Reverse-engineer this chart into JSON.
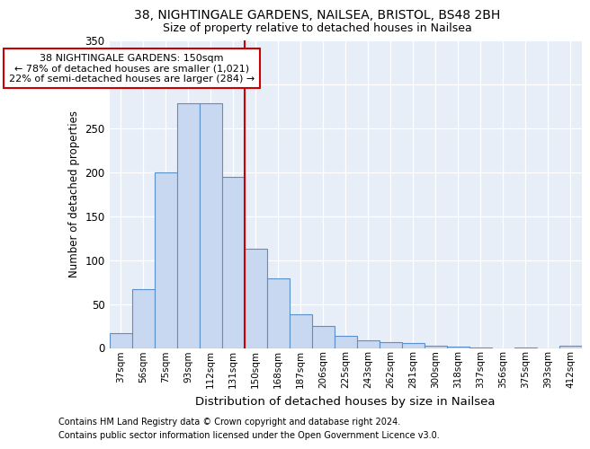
{
  "title1": "38, NIGHTINGALE GARDENS, NAILSEA, BRISTOL, BS48 2BH",
  "title2": "Size of property relative to detached houses in Nailsea",
  "xlabel": "Distribution of detached houses by size in Nailsea",
  "ylabel": "Number of detached properties",
  "categories": [
    "37sqm",
    "56sqm",
    "75sqm",
    "93sqm",
    "112sqm",
    "131sqm",
    "150sqm",
    "168sqm",
    "187sqm",
    "206sqm",
    "225sqm",
    "243sqm",
    "262sqm",
    "281sqm",
    "300sqm",
    "318sqm",
    "337sqm",
    "356sqm",
    "375sqm",
    "393sqm",
    "412sqm"
  ],
  "values": [
    17,
    67,
    200,
    278,
    278,
    195,
    113,
    79,
    38,
    25,
    14,
    9,
    7,
    6,
    3,
    2,
    1,
    0,
    1,
    0,
    3
  ],
  "bar_color": "#c8d8f0",
  "bar_edge_color": "#5b8fc9",
  "vline_color": "#cc0000",
  "annotation_line1": "38 NIGHTINGALE GARDENS: 150sqm",
  "annotation_line2": "← 78% of detached houses are smaller (1,021)",
  "annotation_line3": "22% of semi-detached houses are larger (284) →",
  "annotation_box_color": "#ffffff",
  "annotation_box_edge_color": "#cc0000",
  "ylim": [
    0,
    350
  ],
  "yticks": [
    0,
    50,
    100,
    150,
    200,
    250,
    300,
    350
  ],
  "bg_color": "#e8eef8",
  "footer1": "Contains HM Land Registry data © Crown copyright and database right 2024.",
  "footer2": "Contains public sector information licensed under the Open Government Licence v3.0."
}
